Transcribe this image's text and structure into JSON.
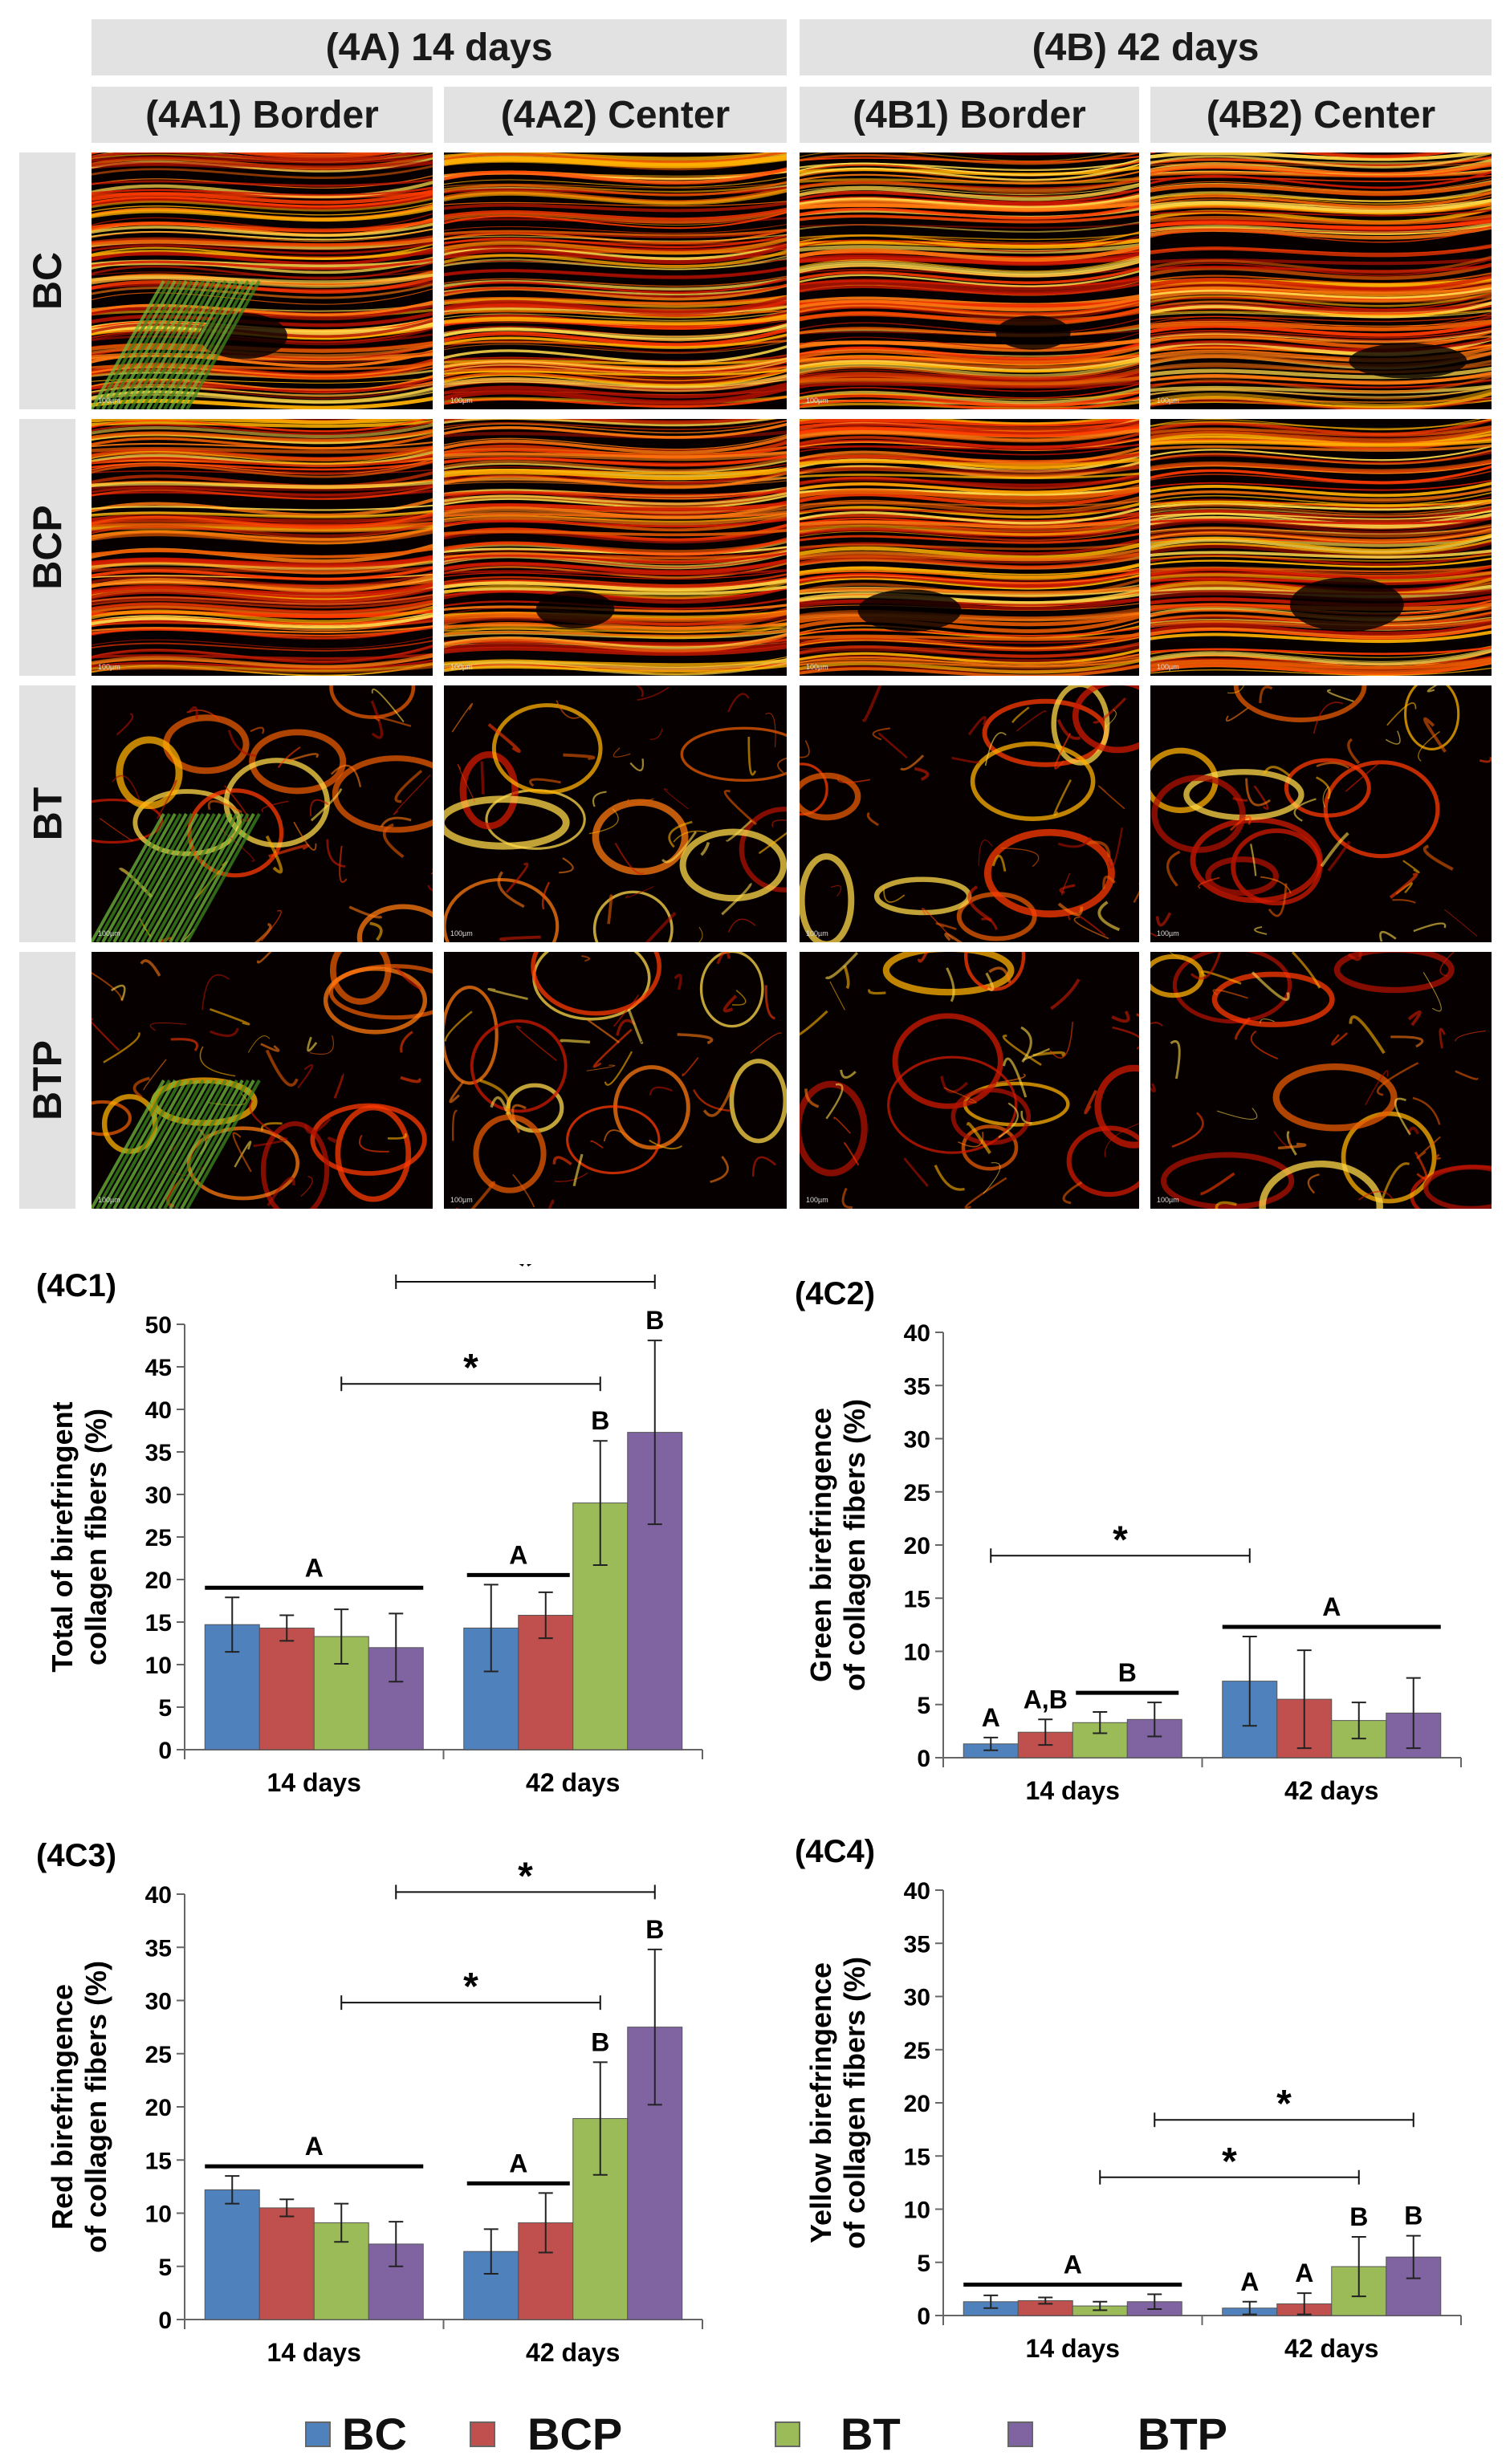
{
  "headers": {
    "group_a": "(4A) 14 days",
    "group_b": "(4B) 42 days",
    "columns": [
      "(4A1) Border",
      "(4A2) Center",
      "(4B1) Border",
      "(4B2) Center"
    ]
  },
  "rows": [
    "BC",
    "BCP",
    "BT",
    "BTP"
  ],
  "scale_bar": "100µm",
  "legend": [
    {
      "label": "BC",
      "color": "#4f81bd"
    },
    {
      "label": "BCP",
      "color": "#c0504d"
    },
    {
      "label": "BT",
      "color": "#9bbb59"
    },
    {
      "label": "BTP",
      "color": "#8064a2"
    }
  ],
  "chart_data": [
    {
      "id": "4C1",
      "panel_label": "(4C1)",
      "type": "bar",
      "ylabel": "Total of birefringent collagen fibers (%)",
      "ylim": [
        0,
        50
      ],
      "yticks": [
        0,
        5,
        10,
        15,
        20,
        25,
        30,
        35,
        40,
        45,
        50
      ],
      "categories": [
        "14 days",
        "42 days"
      ],
      "series": [
        {
          "name": "BC",
          "values": [
            14.7,
            14.3
          ],
          "err": [
            3.2,
            5.1
          ]
        },
        {
          "name": "BCP",
          "values": [
            14.3,
            15.8
          ],
          "err": [
            1.5,
            2.7
          ]
        },
        {
          "name": "BT",
          "values": [
            13.3,
            29.0
          ],
          "err": [
            3.2,
            7.3
          ]
        },
        {
          "name": "BTP",
          "values": [
            12.0,
            37.3
          ],
          "err": [
            4.0,
            10.8
          ]
        }
      ],
      "letters": [
        {
          "text": "A",
          "over": "group:0"
        },
        {
          "text": "A",
          "over": "pair:1:0:1"
        },
        {
          "text": "B",
          "over": "bar:1:2"
        },
        {
          "text": "B",
          "over": "bar:1:3"
        }
      ],
      "sig": [
        {
          "text": "*",
          "from": [
            0,
            2
          ],
          "to": [
            1,
            2
          ],
          "y": 43
        },
        {
          "text": "*",
          "from": [
            0,
            3
          ],
          "to": [
            1,
            3
          ],
          "y": 55
        }
      ]
    },
    {
      "id": "4C2",
      "panel_label": "(4C2)",
      "type": "bar",
      "ylabel": "Green birefringence of collagen fibers (%)",
      "ylim": [
        0,
        40
      ],
      "yticks": [
        0,
        5,
        10,
        15,
        20,
        25,
        30,
        35,
        40
      ],
      "categories": [
        "14 days",
        "42 days"
      ],
      "series": [
        {
          "name": "BC",
          "values": [
            1.3,
            7.2
          ],
          "err": [
            0.6,
            4.2
          ]
        },
        {
          "name": "BCP",
          "values": [
            2.4,
            5.5
          ],
          "err": [
            1.2,
            4.6
          ]
        },
        {
          "name": "BT",
          "values": [
            3.3,
            3.5
          ],
          "err": [
            1.0,
            1.7
          ]
        },
        {
          "name": "BTP",
          "values": [
            3.6,
            4.2
          ],
          "err": [
            1.6,
            3.3
          ]
        }
      ],
      "letters": [
        {
          "text": "A",
          "over": "bar:0:0"
        },
        {
          "text": "A,B",
          "over": "bar:0:1"
        },
        {
          "text": "B",
          "over": "pair:0:2:3"
        },
        {
          "text": "A",
          "over": "group:1"
        }
      ],
      "sig": [
        {
          "text": "*",
          "from": [
            0,
            0
          ],
          "to": [
            1,
            0
          ],
          "y": 19
        }
      ]
    },
    {
      "id": "4C3",
      "panel_label": "(4C3)",
      "type": "bar",
      "ylabel": "Red birefringence of collagen fibers (%)",
      "ylim": [
        0,
        40
      ],
      "yticks": [
        0,
        5,
        10,
        15,
        20,
        25,
        30,
        35,
        40
      ],
      "categories": [
        "14 days",
        "42 days"
      ],
      "series": [
        {
          "name": "BC",
          "values": [
            12.2,
            6.4
          ],
          "err": [
            1.3,
            2.1
          ]
        },
        {
          "name": "BCP",
          "values": [
            10.5,
            9.1
          ],
          "err": [
            0.8,
            2.8
          ]
        },
        {
          "name": "BT",
          "values": [
            9.1,
            18.9
          ],
          "err": [
            1.8,
            5.3
          ]
        },
        {
          "name": "BTP",
          "values": [
            7.1,
            27.5
          ],
          "err": [
            2.1,
            7.3
          ]
        }
      ],
      "letters": [
        {
          "text": "A",
          "over": "group:0"
        },
        {
          "text": "A",
          "over": "pair:1:0:1"
        },
        {
          "text": "B",
          "over": "bar:1:2"
        },
        {
          "text": "B",
          "over": "bar:1:3"
        }
      ],
      "sig": [
        {
          "text": "*",
          "from": [
            0,
            2
          ],
          "to": [
            1,
            2
          ],
          "y": 29.8
        },
        {
          "text": "*",
          "from": [
            0,
            3
          ],
          "to": [
            1,
            3
          ],
          "y": 40.2
        }
      ]
    },
    {
      "id": "4C4",
      "panel_label": "(4C4)",
      "type": "bar",
      "ylabel": "Yellow birefringence of collagen fibers (%)",
      "ylim": [
        0,
        40
      ],
      "yticks": [
        0,
        5,
        10,
        15,
        20,
        25,
        30,
        35,
        40
      ],
      "categories": [
        "14 days",
        "42 days"
      ],
      "series": [
        {
          "name": "BC",
          "values": [
            1.3,
            0.7
          ],
          "err": [
            0.6,
            0.6
          ]
        },
        {
          "name": "BCP",
          "values": [
            1.4,
            1.1
          ],
          "err": [
            0.3,
            1.0
          ]
        },
        {
          "name": "BT",
          "values": [
            0.9,
            4.6
          ],
          "err": [
            0.4,
            2.8
          ]
        },
        {
          "name": "BTP",
          "values": [
            1.3,
            5.5
          ],
          "err": [
            0.7,
            2.0
          ]
        }
      ],
      "letters": [
        {
          "text": "A",
          "over": "group:0"
        },
        {
          "text": "A",
          "over": "bar:1:0"
        },
        {
          "text": "A",
          "over": "bar:1:1"
        },
        {
          "text": "B",
          "over": "bar:1:2"
        },
        {
          "text": "B",
          "over": "bar:1:3"
        }
      ],
      "sig": [
        {
          "text": "*",
          "from": [
            0,
            2
          ],
          "to": [
            1,
            2
          ],
          "y": 13
        },
        {
          "text": "*",
          "from": [
            0,
            3
          ],
          "to": [
            1,
            3
          ],
          "y": 18.4
        }
      ]
    }
  ]
}
